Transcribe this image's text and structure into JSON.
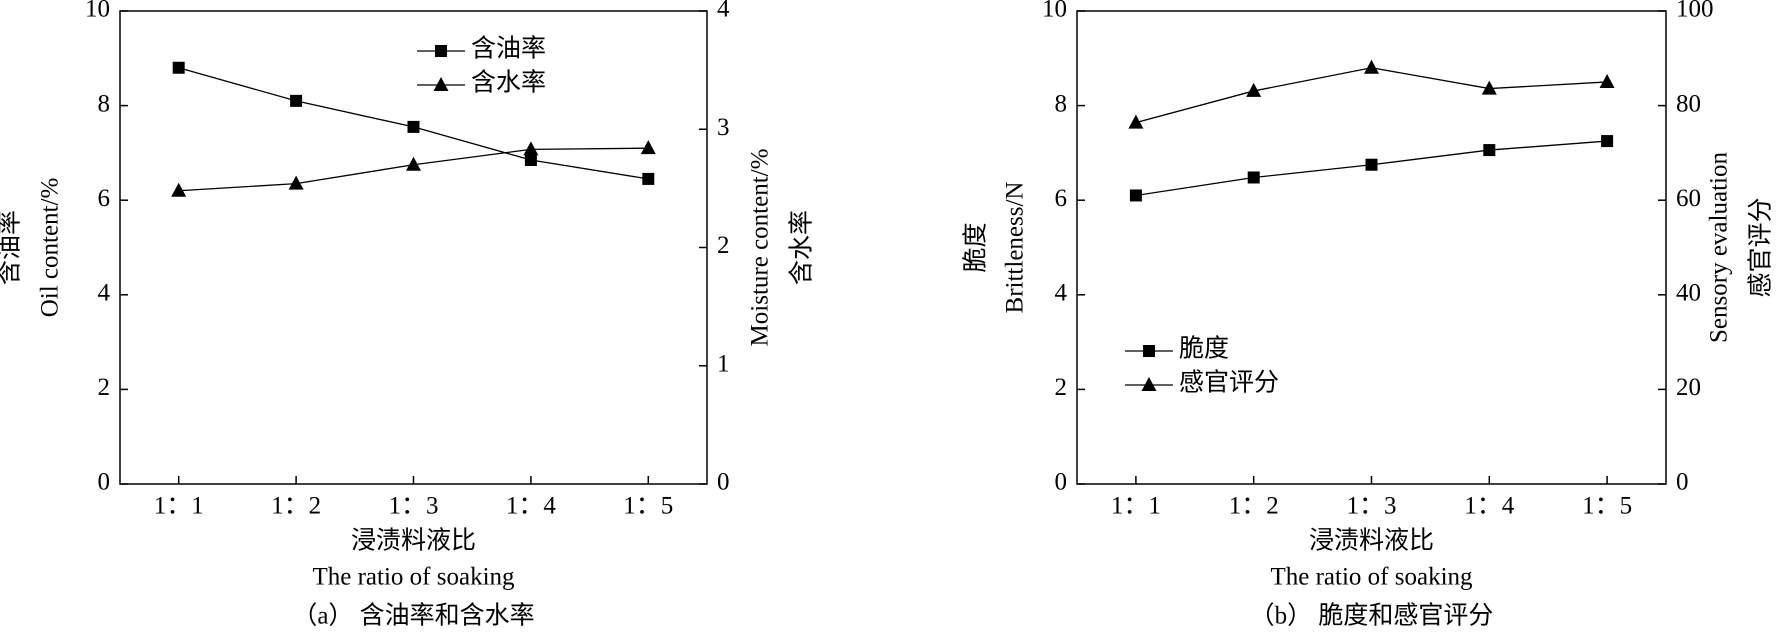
{
  "chart_data": [
    {
      "type": "line",
      "ylabel": [
        "含油率",
        "Oil content/%"
      ],
      "y2label": [
        "Moisture content/%",
        "含水率"
      ],
      "xlabel": [
        "浸渍料液比",
        "The ratio of soaking"
      ],
      "caption": "（a） 含油率和含水率",
      "categories": [
        "1：1",
        "1：2",
        "1：3",
        "1：4",
        "1：5"
      ],
      "ylim": [
        0,
        10
      ],
      "yticks": [
        0,
        2,
        4,
        6,
        8,
        10
      ],
      "y2lim": [
        0,
        4
      ],
      "y2ticks": [
        0,
        1,
        2,
        3,
        4
      ],
      "legend": "upper right",
      "series": [
        {
          "name": "含油率",
          "color": "#000000",
          "marker": "square",
          "values": [
            8.8,
            8.1,
            7.55,
            6.85,
            6.45
          ]
        },
        {
          "name": "含水率",
          "color": "#000000",
          "marker": "triangle",
          "axis": "y2",
          "values": [
            2.48,
            2.54,
            2.7,
            2.83,
            2.84
          ]
        }
      ]
    },
    {
      "type": "line",
      "ylabel": [
        "脆度",
        "Brittleness/N"
      ],
      "y2label": [
        "Sensory evaluation",
        "感官评分"
      ],
      "xlabel": [
        "浸渍料液比",
        "The ratio of soaking"
      ],
      "caption": "（b） 脆度和感官评分",
      "categories": [
        "1：1",
        "1：2",
        "1：3",
        "1：4",
        "1：5"
      ],
      "ylim": [
        0,
        10
      ],
      "yticks": [
        0,
        2,
        4,
        6,
        8,
        10
      ],
      "y2lim": [
        0,
        100
      ],
      "y2ticks": [
        0,
        20,
        40,
        60,
        80,
        100
      ],
      "legend": "lower left",
      "series": [
        {
          "name": "脆度",
          "color": "#000000",
          "marker": "square",
          "values": [
            6.1,
            6.48,
            6.75,
            7.06,
            7.25
          ]
        },
        {
          "name": "感官评分",
          "color": "#000000",
          "marker": "triangle",
          "axis": "y2",
          "values": [
            76.4,
            83.1,
            88,
            83.6,
            85
          ]
        }
      ]
    }
  ]
}
